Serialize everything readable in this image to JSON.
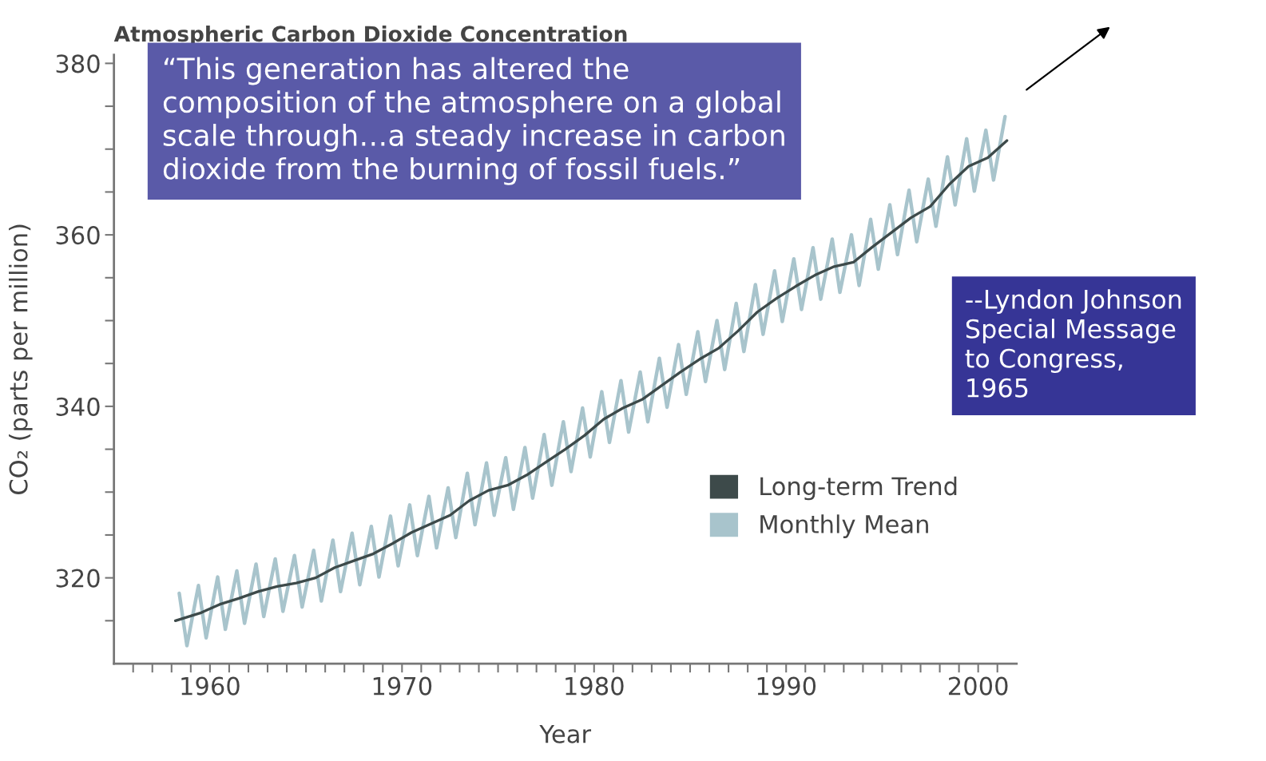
{
  "chart_data": {
    "type": "line",
    "title": "Atmospheric Carbon Dioxide Concentration",
    "xlabel": "Year",
    "ylabel": "CO₂ (parts per million)",
    "xlim": [
      1955,
      2002
    ],
    "xticks": [
      {
        "value": 1956,
        "label": null
      },
      {
        "value": 1957,
        "label": null
      },
      {
        "value": 1958,
        "label": null
      },
      {
        "value": 1959,
        "label": null
      },
      1960,
      {
        "value": 1961,
        "label": null
      },
      {
        "value": 1962,
        "label": null
      },
      {
        "value": 1963,
        "label": null
      },
      {
        "value": 1964,
        "label": null
      },
      {
        "value": 1965,
        "label": null
      },
      {
        "value": 1966,
        "label": null
      },
      {
        "value": 1967,
        "label": null
      },
      {
        "value": 1968,
        "label": null
      },
      {
        "value": 1969,
        "label": null
      },
      1970,
      {
        "value": 1971,
        "label": null
      },
      {
        "value": 1972,
        "label": null
      },
      {
        "value": 1973,
        "label": null
      },
      {
        "value": 1974,
        "label": null
      },
      {
        "value": 1975,
        "label": null
      },
      {
        "value": 1976,
        "label": null
      },
      {
        "value": 1977,
        "label": null
      },
      {
        "value": 1978,
        "label": null
      },
      {
        "value": 1979,
        "label": null
      },
      1980,
      {
        "value": 1981,
        "label": null
      },
      {
        "value": 1982,
        "label": null
      },
      {
        "value": 1983,
        "label": null
      },
      {
        "value": 1984,
        "label": null
      },
      {
        "value": 1985,
        "label": null
      },
      {
        "value": 1986,
        "label": null
      },
      {
        "value": 1987,
        "label": null
      },
      {
        "value": 1988,
        "label": null
      },
      {
        "value": 1989,
        "label": null
      },
      1990,
      {
        "value": 1991,
        "label": null
      },
      {
        "value": 1992,
        "label": null
      },
      {
        "value": 1993,
        "label": null
      },
      {
        "value": 1994,
        "label": null
      },
      {
        "value": 1995,
        "label": null
      },
      {
        "value": 1996,
        "label": null
      },
      {
        "value": 1997,
        "label": null
      },
      {
        "value": 1998,
        "label": null
      },
      {
        "value": 1999,
        "label": null
      },
      2000,
      {
        "value": 2001,
        "label": null
      }
    ],
    "ylim": [
      310,
      381
    ],
    "yticks": [
      {
        "value": 315,
        "label": null
      },
      320,
      {
        "value": 325,
        "label": null
      },
      {
        "value": 330,
        "label": null
      },
      {
        "value": 335,
        "label": null
      },
      340,
      {
        "value": 345,
        "label": null
      },
      {
        "value": 350,
        "label": null
      },
      {
        "value": 355,
        "label": null
      },
      360,
      {
        "value": 365,
        "label": null
      },
      {
        "value": 370,
        "label": null
      },
      {
        "value": 375,
        "label": null
      },
      380
    ],
    "grid": false,
    "legend": "lower right",
    "series": [
      {
        "name": "Monthly Mean",
        "color": "#a8c4cc",
        "x": [
          1958.4,
          1958.8,
          1959.4,
          1959.8,
          1960.4,
          1960.8,
          1961.4,
          1961.8,
          1962.4,
          1962.8,
          1963.4,
          1963.8,
          1964.4,
          1964.8,
          1965.4,
          1965.8,
          1966.4,
          1966.8,
          1967.4,
          1967.8,
          1968.4,
          1968.8,
          1969.4,
          1969.8,
          1970.4,
          1970.8,
          1971.4,
          1971.8,
          1972.4,
          1972.8,
          1973.4,
          1973.8,
          1974.4,
          1974.8,
          1975.4,
          1975.8,
          1976.4,
          1976.8,
          1977.4,
          1977.8,
          1978.4,
          1978.8,
          1979.4,
          1979.8,
          1980.4,
          1980.8,
          1981.4,
          1981.8,
          1982.4,
          1982.8,
          1983.4,
          1983.8,
          1984.4,
          1984.8,
          1985.4,
          1985.8,
          1986.4,
          1986.8,
          1987.4,
          1987.8,
          1988.4,
          1988.8,
          1989.4,
          1989.8,
          1990.4,
          1990.8,
          1991.4,
          1991.8,
          1992.4,
          1992.8,
          1993.4,
          1993.8,
          1994.4,
          1994.8,
          1995.4,
          1995.8,
          1996.4,
          1996.8,
          1997.4,
          1997.8,
          1998.4,
          1998.8,
          1999.4,
          1999.8,
          2000.4,
          2000.8,
          2001.4
        ],
        "values": [
          318.2,
          312.1,
          319.1,
          313.0,
          320.1,
          314.0,
          320.8,
          314.7,
          321.6,
          315.5,
          322.2,
          316.1,
          322.6,
          316.6,
          323.2,
          317.3,
          324.4,
          318.4,
          325.2,
          319.2,
          326.0,
          320.1,
          327.2,
          321.4,
          328.5,
          322.6,
          329.5,
          323.5,
          330.5,
          324.7,
          332.2,
          326.2,
          333.4,
          327.3,
          334.0,
          328.0,
          335.2,
          329.3,
          336.7,
          330.8,
          338.2,
          332.4,
          339.8,
          334.1,
          341.7,
          335.8,
          343.0,
          337.0,
          344.0,
          338.2,
          345.6,
          339.9,
          347.2,
          341.4,
          348.7,
          342.9,
          350.0,
          344.3,
          352.0,
          346.4,
          354.2,
          348.4,
          355.8,
          349.9,
          357.2,
          351.3,
          358.5,
          352.5,
          359.5,
          353.3,
          360.0,
          354.1,
          361.8,
          356.0,
          363.5,
          357.7,
          365.2,
          359.2,
          366.5,
          361.0,
          369.1,
          363.5,
          371.2,
          365.1,
          372.2,
          366.4,
          373.8
        ]
      },
      {
        "name": "Long-term Trend",
        "color": "#3d4a4a",
        "x": [
          1958.2,
          1959.5,
          1960.5,
          1961.5,
          1962.5,
          1963.5,
          1964.5,
          1965.5,
          1966.5,
          1967.5,
          1968.5,
          1969.5,
          1970.5,
          1971.5,
          1972.5,
          1973.5,
          1974.5,
          1975.5,
          1976.5,
          1977.5,
          1978.5,
          1979.5,
          1980.5,
          1981.5,
          1982.5,
          1983.5,
          1984.5,
          1985.5,
          1986.5,
          1987.5,
          1988.5,
          1989.5,
          1990.5,
          1991.5,
          1992.5,
          1993.5,
          1994.5,
          1995.5,
          1996.5,
          1997.5,
          1998.5,
          1999.5,
          2000.5,
          2001.5
        ],
        "values": [
          315.0,
          315.9,
          316.9,
          317.6,
          318.4,
          319.0,
          319.4,
          320.0,
          321.2,
          322.0,
          322.8,
          324.0,
          325.3,
          326.3,
          327.3,
          329.0,
          330.2,
          330.8,
          332.0,
          333.5,
          335.0,
          336.6,
          338.5,
          339.8,
          340.8,
          342.4,
          344.0,
          345.5,
          346.8,
          348.8,
          351.0,
          352.6,
          354.0,
          355.3,
          356.3,
          356.8,
          358.6,
          360.3,
          362.0,
          363.3,
          365.9,
          368.0,
          369.0,
          371.0
        ]
      }
    ],
    "annotations": [
      "“This generation has altered the composition of the atmosphere on a global scale through…a steady increase in carbon dioxide from the burning of fossil fuels.”",
      "--Lyndon Johnson\nSpecial Message\nto Congress,\n1965"
    ]
  }
}
